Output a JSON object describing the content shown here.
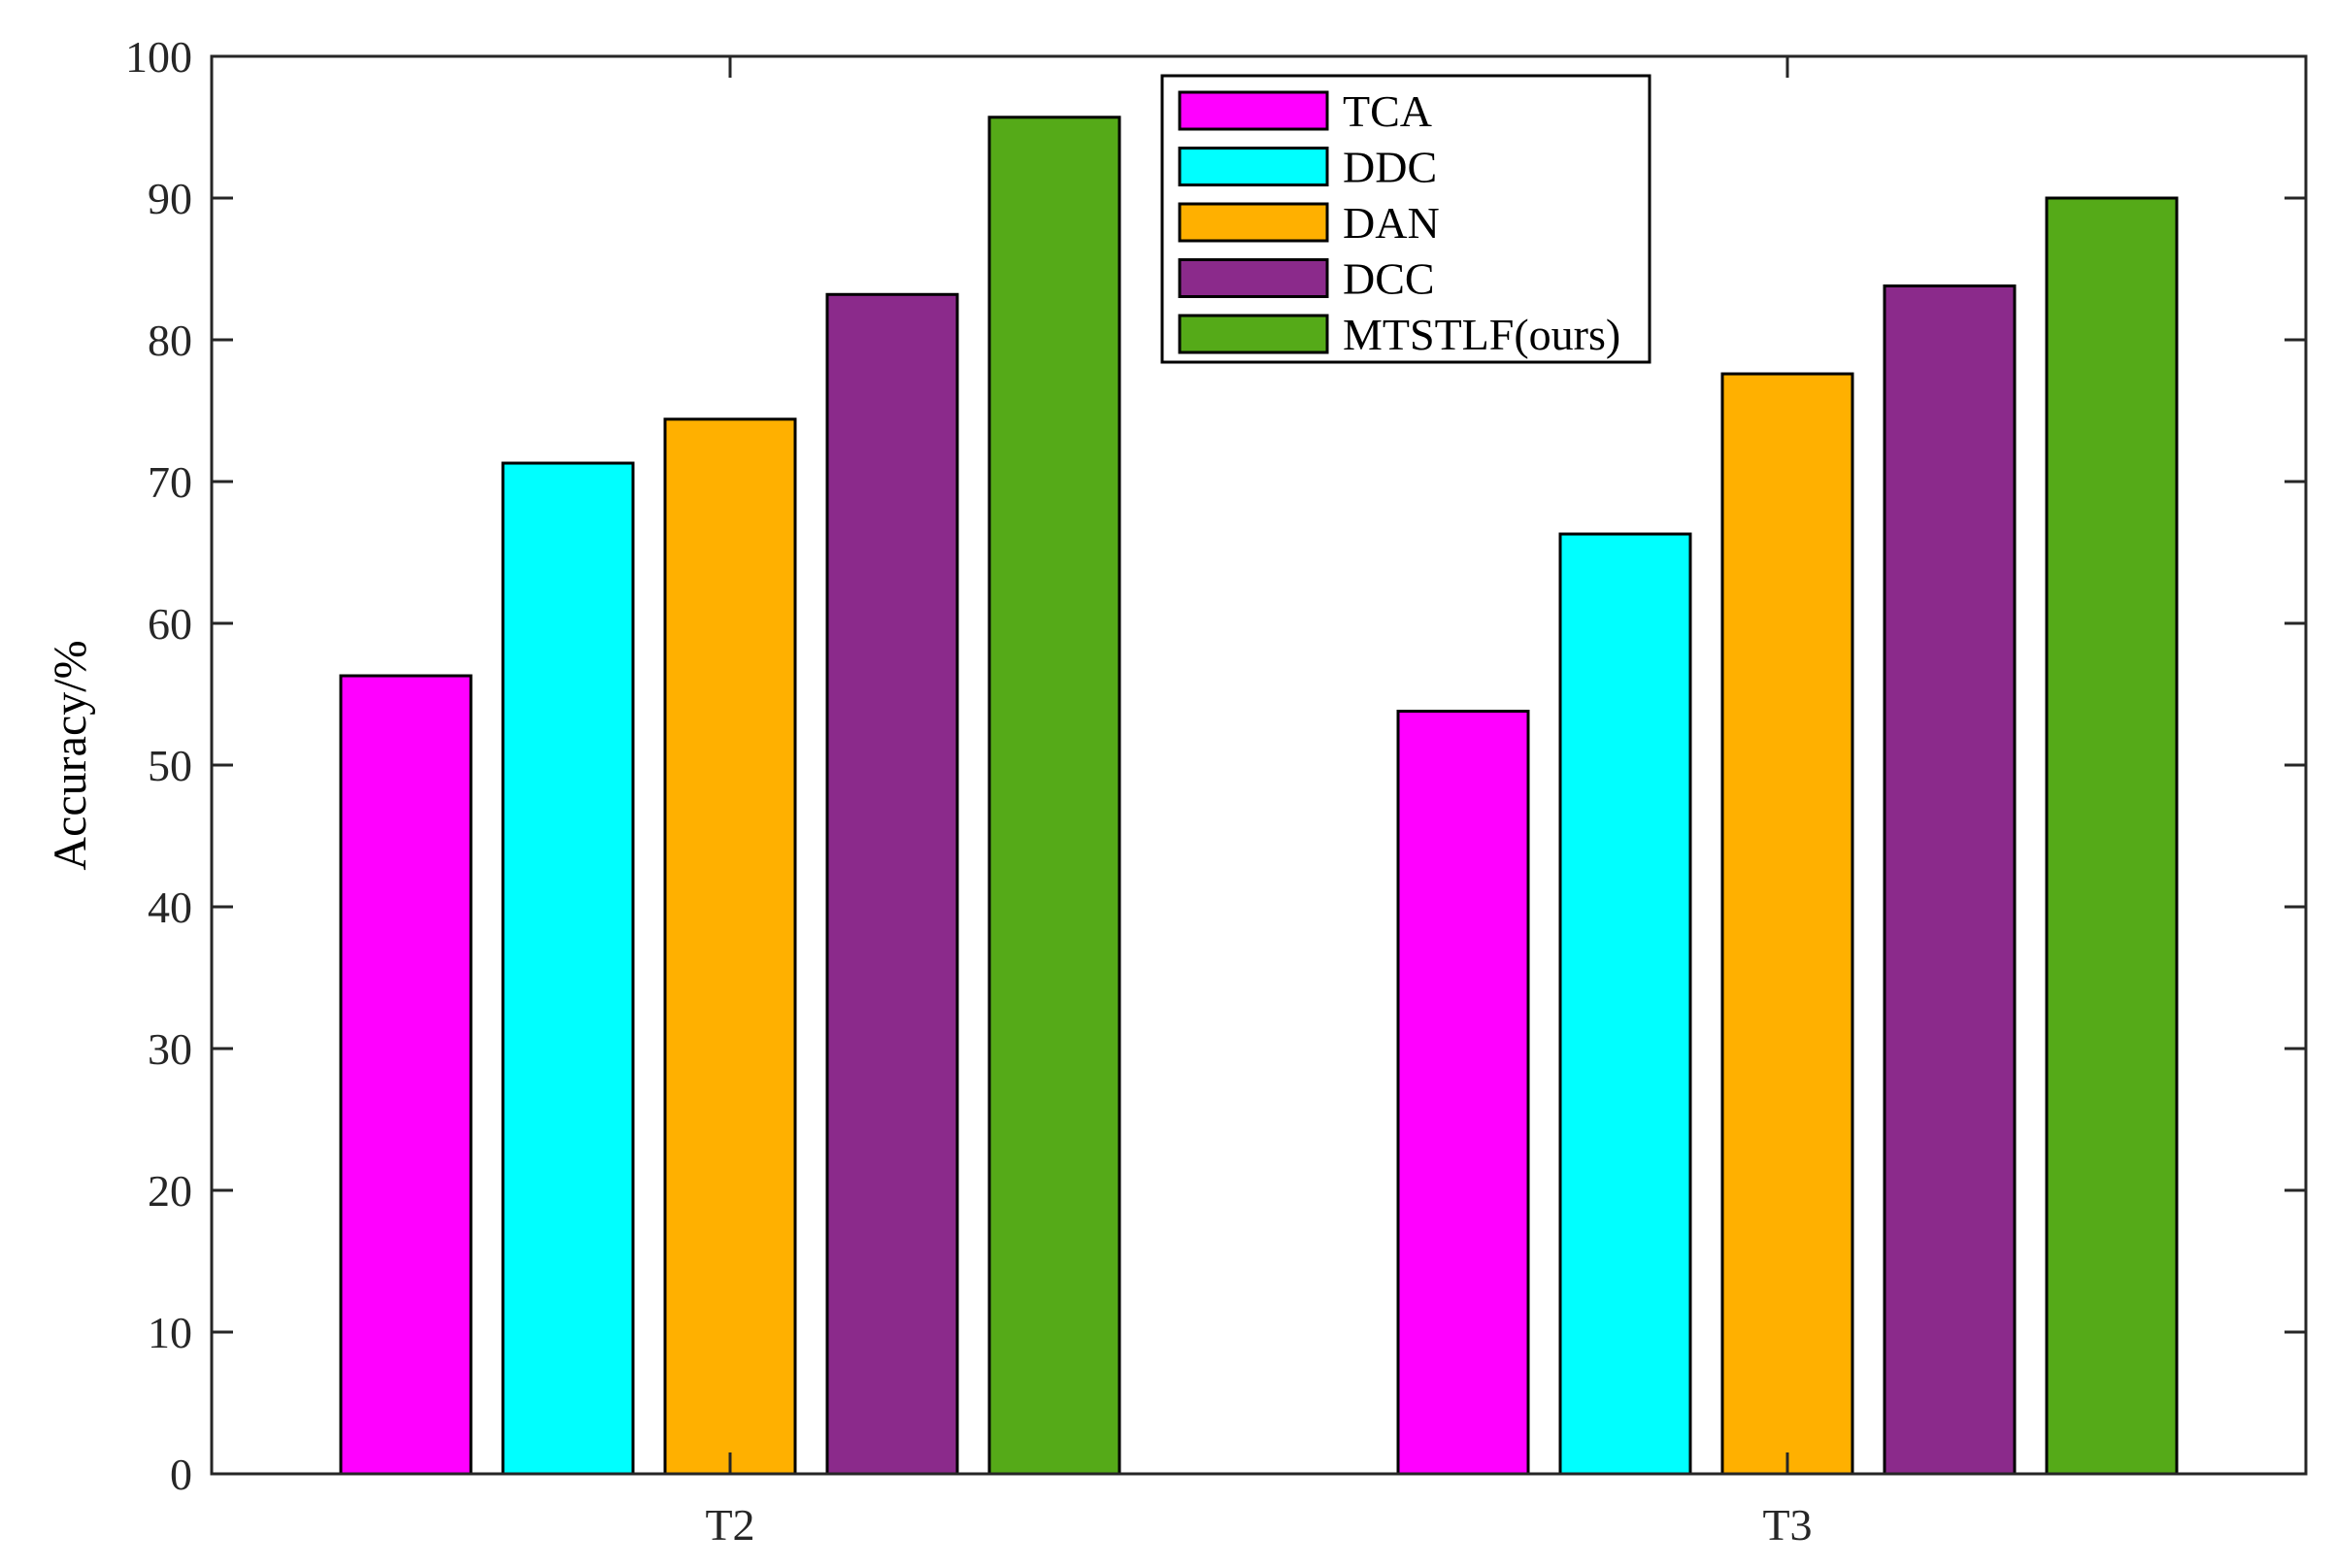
{
  "chart_data": {
    "type": "bar",
    "categories": [
      "T2",
      "T3"
    ],
    "series": [
      {
        "name": "TCA",
        "color": "#FF00FF",
        "values": [
          56.3,
          53.8
        ]
      },
      {
        "name": "DDC",
        "color": "#00FFFF",
        "values": [
          71.3,
          66.3
        ]
      },
      {
        "name": "DAN",
        "color": "#FFB000",
        "values": [
          74.4,
          77.6
        ]
      },
      {
        "name": "DCC",
        "color": "#8B2A8B",
        "values": [
          83.2,
          83.8
        ]
      },
      {
        "name": "MTSTLF(ours)",
        "color": "#55AA18",
        "values": [
          95.7,
          90.0
        ]
      }
    ],
    "title": "",
    "xlabel": "",
    "ylabel": "Accuracy/%",
    "ylim": [
      0,
      100
    ],
    "yticks": [
      0,
      10,
      20,
      30,
      40,
      50,
      60,
      70,
      80,
      90,
      100
    ],
    "grid": false,
    "legend_position": "top-center"
  }
}
